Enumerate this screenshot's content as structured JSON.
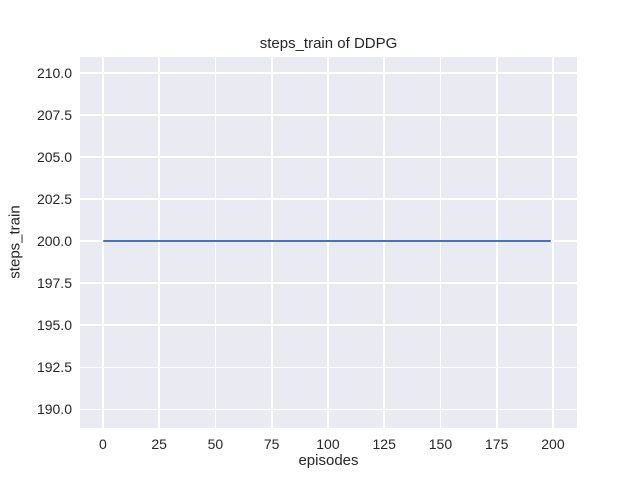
{
  "chart_data": {
    "type": "line",
    "title": "steps_train of DDPG",
    "xlabel": "episodes",
    "ylabel": "steps_train",
    "xlim": [
      -10.2,
      210.7
    ],
    "ylim": [
      188.9,
      210.95
    ],
    "grid": true,
    "legend": "none",
    "x_ticks": {
      "values": [
        0,
        25,
        50,
        75,
        100,
        125,
        150,
        175,
        200
      ],
      "labels": [
        "0",
        "25",
        "50",
        "75",
        "100",
        "125",
        "150",
        "175",
        "200"
      ]
    },
    "y_ticks": {
      "values": [
        190,
        192.5,
        195,
        197.5,
        200,
        202.5,
        205,
        207.5,
        210
      ],
      "labels": [
        "190.0",
        "192.5",
        "195.0",
        "197.5",
        "200.0",
        "202.5",
        "205.0",
        "207.5",
        "210.0"
      ]
    },
    "series": [
      {
        "name": "steps_train",
        "color": "#4c72b0",
        "x": [
          0,
          199
        ],
        "y": [
          200,
          200
        ]
      }
    ],
    "style": {
      "figure_background": "#ffffff",
      "axes_background": "#eaeaf2",
      "grid_color": "#ffffff",
      "text_color": "#262626"
    }
  }
}
